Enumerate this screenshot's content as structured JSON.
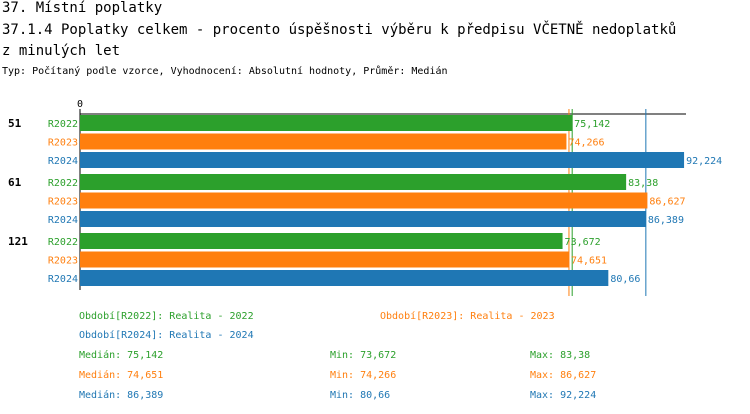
{
  "header": {
    "title_line1": "37. Místní poplatky",
    "title_line2": "37.1.4 Poplatky celkem - procento úspěšnosti výběru k předpisu VČETNĚ nedoplatků",
    "title_line3": "z minulých let",
    "subtitle": "Typ: Počítaný podle vzorce, Vyhodnocení: Absolutní hodnoty, Průměr: Medián"
  },
  "colors": {
    "R2022": "#2ca02c",
    "R2023": "#ff7f0e",
    "R2024": "#1f77b4"
  },
  "chart_data": {
    "type": "bar",
    "orientation": "horizontal",
    "x_tick_label": "0",
    "xlim": [
      0,
      100
    ],
    "groups": [
      "51",
      "61",
      "121"
    ],
    "series": [
      {
        "name": "R2022",
        "values": [
          75.142,
          83.38,
          73.672
        ],
        "labels": [
          "75,142",
          "83,38",
          "73,672"
        ]
      },
      {
        "name": "R2023",
        "values": [
          74.266,
          86.627,
          74.651
        ],
        "labels": [
          "74,266",
          "86,627",
          "74,651"
        ]
      },
      {
        "name": "R2024",
        "values": [
          92.224,
          86.389,
          80.66
        ],
        "labels": [
          "92,224",
          "86,389",
          "80,66"
        ]
      }
    ],
    "median_lines": [
      {
        "series": "R2022",
        "value": 75.142
      },
      {
        "series": "R2023",
        "value": 74.651
      },
      {
        "series": "R2024",
        "value": 86.389
      }
    ]
  },
  "legend": {
    "periods": [
      {
        "series": "R2022",
        "text": "Období[R2022]: Realita - 2022"
      },
      {
        "series": "R2023",
        "text": "Období[R2023]: Realita - 2023"
      },
      {
        "series": "R2024",
        "text": "Období[R2024]: Realita - 2024"
      }
    ],
    "stats": [
      {
        "series": "R2022",
        "median": "Medián: 75,142",
        "min": "Min: 73,672",
        "max": "Max: 83,38"
      },
      {
        "series": "R2023",
        "median": "Medián: 74,651",
        "min": "Min: 74,266",
        "max": "Max: 86,627"
      },
      {
        "series": "R2024",
        "median": "Medián: 86,389",
        "min": "Min: 80,66",
        "max": "Max: 92,224"
      }
    ]
  }
}
